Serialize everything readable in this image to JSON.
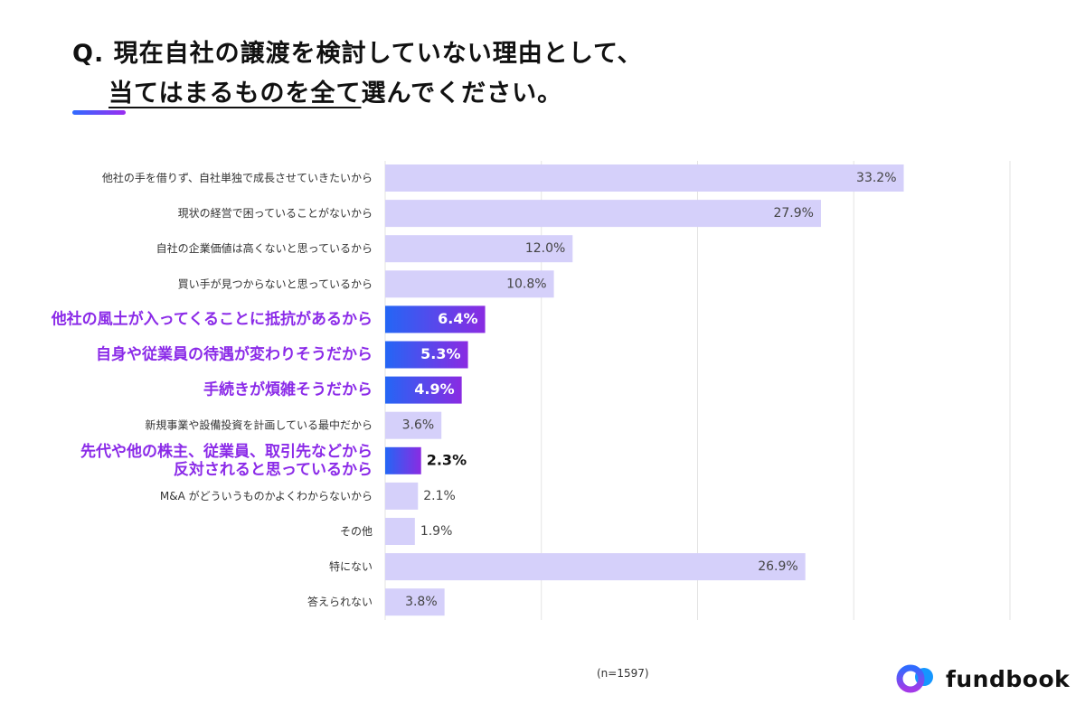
{
  "title": {
    "prefix": "Q. ",
    "line1": "現在自社の譲渡を検討していない理由として、",
    "line2_underlined": "当てはまるものを全て",
    "line2_rest": "選んでください。"
  },
  "note": "(n=1597)",
  "logo": {
    "text": "fundbook"
  },
  "colors": {
    "bar": "#d5d0fa",
    "highlight_start": "#2466f5",
    "highlight_end": "#8a2be2",
    "highlight_label": "#8b2be8",
    "grid": "#e3e3e3"
  },
  "chart_data": {
    "type": "bar",
    "orientation": "horizontal",
    "categories": [
      "他社の手を借りず、自社単独で成長させていきたいから",
      "現状の経営で困っていることがないから",
      "自社の企業価値は高くないと思っているから",
      "買い手が見つからないと思っているから",
      "他社の風土が入ってくることに抵抗があるから",
      "自身や従業員の待遇が変わりそうだから",
      "手続きが煩雑そうだから",
      "新規事業や設備投資を計画している最中だから",
      "先代や他の株主、従業員、取引先などから\n反対されると思っているから",
      "M&A がどういうものかよくわからないから",
      "その他",
      "特にない",
      "答えられない"
    ],
    "values": [
      33.2,
      27.9,
      12.0,
      10.8,
      6.4,
      5.3,
      4.9,
      3.6,
      2.3,
      2.1,
      1.9,
      26.9,
      3.8
    ],
    "labels": [
      "33.2%",
      "27.9%",
      "12.0%",
      "10.8%",
      "6.4%",
      "5.3%",
      "4.9%",
      "3.6%",
      "2.3%",
      "2.1%",
      "1.9%",
      "26.9%",
      "3.8%"
    ],
    "highlighted": [
      false,
      false,
      false,
      false,
      true,
      true,
      true,
      false,
      true,
      false,
      false,
      false,
      false
    ],
    "xlim": [
      0,
      40
    ],
    "grid_step": 10,
    "unit": "%",
    "xlabel": "",
    "ylabel": "",
    "grid": true
  }
}
